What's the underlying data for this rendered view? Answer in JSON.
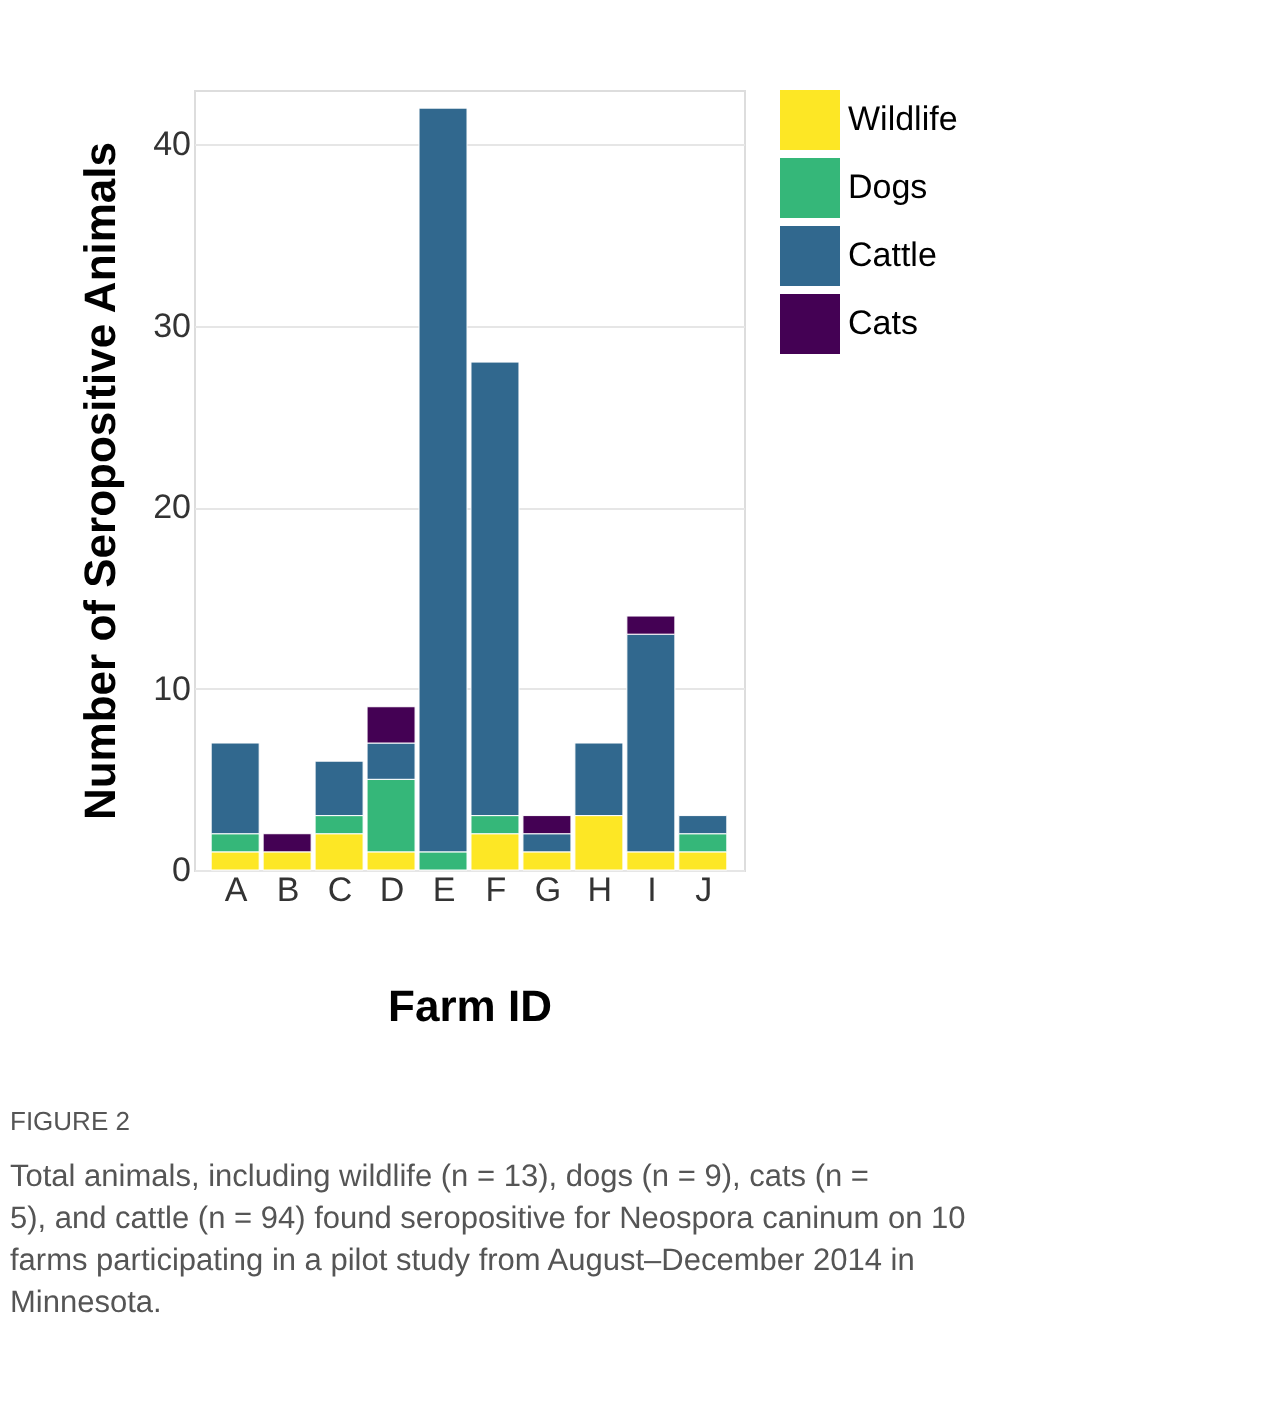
{
  "chart_data": {
    "type": "bar",
    "stacked": true,
    "xlabel": "Farm ID",
    "ylabel": "Number of Seropositive Animals",
    "categories": [
      "A",
      "B",
      "C",
      "D",
      "E",
      "F",
      "G",
      "H",
      "I",
      "J"
    ],
    "series": [
      {
        "name": "Wildlife",
        "color": "#fde725",
        "values": [
          1,
          1,
          2,
          1,
          0,
          2,
          1,
          3,
          1,
          1
        ]
      },
      {
        "name": "Dogs",
        "color": "#35b779",
        "values": [
          1,
          0,
          1,
          4,
          1,
          1,
          0,
          0,
          0,
          1
        ]
      },
      {
        "name": "Cattle",
        "color": "#31688e",
        "values": [
          5,
          0,
          3,
          2,
          41,
          25,
          1,
          4,
          12,
          1
        ]
      },
      {
        "name": "Cats",
        "color": "#440154",
        "values": [
          0,
          1,
          0,
          2,
          0,
          0,
          1,
          0,
          1,
          0
        ]
      }
    ],
    "ylim": [
      0,
      43
    ],
    "yticks": [
      0,
      10,
      20,
      30,
      40
    ],
    "grid": "y",
    "legend": "right",
    "annotations": [
      "FIGURE 2",
      "Total animals, including wildlife (n = 13), dogs (n = 9), cats (n = 5), and cattle (n = 94) found seropositive for Neospora caninum on 10 farms participating in a pilot study from August–December 2014 in Minnesota."
    ]
  }
}
